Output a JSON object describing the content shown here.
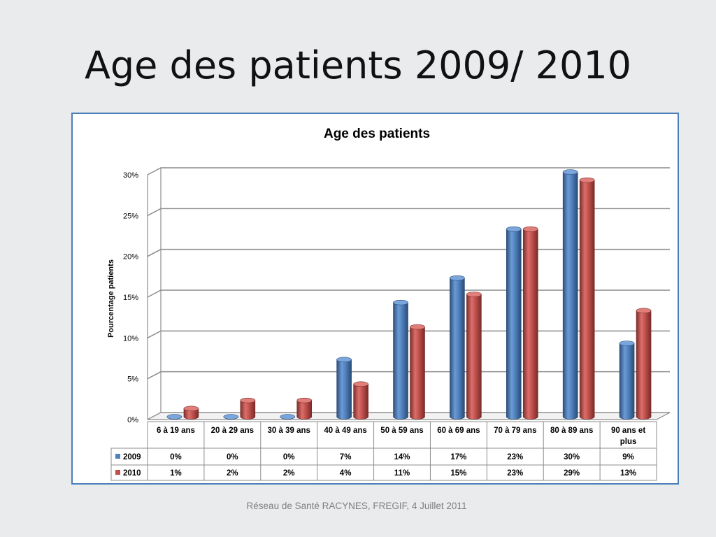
{
  "slide": {
    "title": "Age des patients 2009/ 2010",
    "footer": "Réseau de Santé RACYNES, FREGIF, 4 Juillet 2011"
  },
  "chart_data": {
    "type": "bar",
    "title": "Age des patients",
    "xlabel": "",
    "ylabel": "Pourcentage patients",
    "ylim": [
      0,
      30
    ],
    "yticks": [
      "0%",
      "5%",
      "10%",
      "15%",
      "20%",
      "25%",
      "30%"
    ],
    "ytick_values": [
      0,
      5,
      10,
      15,
      20,
      25,
      30
    ],
    "grid": true,
    "legend": "data-table",
    "categories": [
      "6 à 19 ans",
      "20 à 29 ans",
      "30 à 39 ans",
      "40 à 49 ans",
      "50 à 59 ans",
      "60 à 69 ans",
      "70 à 79 ans",
      "80 à 89 ans",
      "90 ans et plus"
    ],
    "series": [
      {
        "name": "2009",
        "color": "#4f81bd",
        "values": [
          0,
          0,
          0,
          7,
          14,
          17,
          23,
          30,
          9
        ],
        "labels": [
          "0%",
          "0%",
          "0%",
          "7%",
          "14%",
          "17%",
          "23%",
          "30%",
          "9%"
        ]
      },
      {
        "name": "2010",
        "color": "#c0504d",
        "values": [
          1,
          2,
          2,
          4,
          11,
          15,
          23,
          29,
          13
        ],
        "labels": [
          "1%",
          "2%",
          "2%",
          "4%",
          "11%",
          "15%",
          "23%",
          "29%",
          "13%"
        ]
      }
    ]
  }
}
